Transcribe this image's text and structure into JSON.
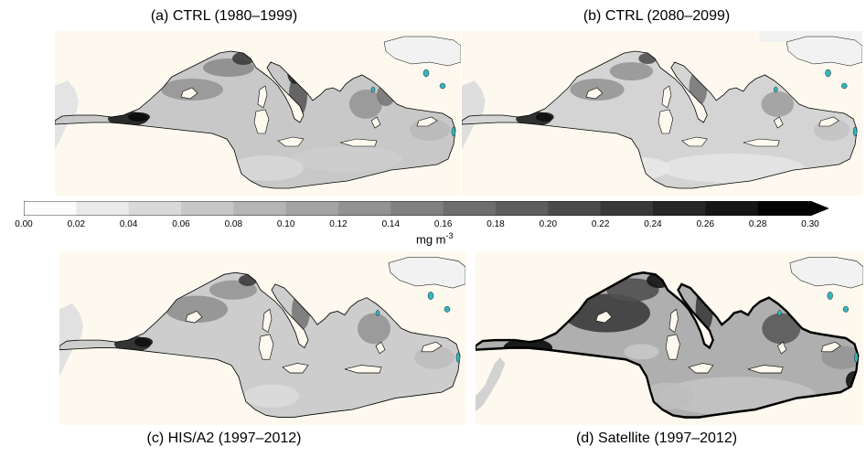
{
  "panels": [
    {
      "id": "a",
      "title": "(a) CTRL (1980–1999)"
    },
    {
      "id": "b",
      "title": "(b) CTRL (2080–2099)"
    },
    {
      "id": "c",
      "title": "(c) HIS/A2 (1997–2012)"
    },
    {
      "id": "d",
      "title": "(d) Satellite (1997–2012)"
    }
  ],
  "colorbar": {
    "ticks": [
      "0.00",
      "0.02",
      "0.04",
      "0.06",
      "0.08",
      "0.10",
      "0.12",
      "0.14",
      "0.16",
      "0.18",
      "0.20",
      "0.22",
      "0.24",
      "0.26",
      "0.28",
      "0.30"
    ],
    "min": 0.0,
    "max": 0.3,
    "levels": 15,
    "extend": "max",
    "colormap": "greys",
    "unit_base": "mg m",
    "unit_exp": "-3"
  },
  "colors": {
    "land": "#fdf9ee",
    "sea_outside": "#f2f2f2",
    "coast": "#000000",
    "lakes": "#35b6bf"
  }
}
